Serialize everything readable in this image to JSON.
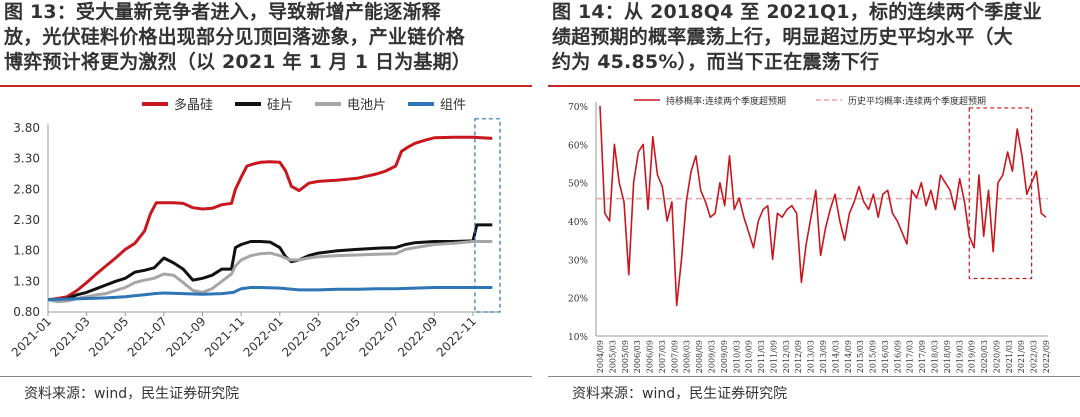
{
  "left": {
    "title": "图 13：受大量新竞争者进入，导致新增产能逐渐释放，光伏硅料价格出现部分见顶回落迹象，产业链价格博弈预计将更为激烈（以 2021 年 1 月 1 日为基期）",
    "title_lines": [
      "图 13：受大量新竞争者进入，导致新增产能逐渐释",
      "放，光伏硅料价格出现部分见顶回落迹象，产业链价格",
      "博弈预计将更为激烈（以 2021 年 1 月 1 日为基期）"
    ],
    "source": "资料来源：wind，民生证券研究院"
  },
  "right": {
    "title_lines": [
      "图 14：从 2018Q4 至 2021Q1，标的连续两个季度业",
      "绩超预期的概率震荡上行，明显超过历史平均水平（大",
      "约为 45.85%），而当下正在震荡下行"
    ],
    "source": "资料来源：wind，民生证券研究院"
  },
  "colors": {
    "accent": "#c62828",
    "poly": "#c8171e",
    "wafer": "#111111",
    "cell": "#a6a6a6",
    "module": "#2e75b6",
    "box": "#2e75b6"
  },
  "chart_data": [
    {
      "type": "line",
      "x_ticks": [
        "2021-01",
        "2021-03",
        "2021-05",
        "2021-07",
        "2021-09",
        "2021-11",
        "2022-01",
        "2022-03",
        "2022-05",
        "2022-07",
        "2022-09",
        "2022-11"
      ],
      "y_ticks": [
        "0.80",
        "1.30",
        "1.80",
        "2.30",
        "2.80",
        "3.30",
        "3.80"
      ],
      "ylim": [
        0.8,
        3.8
      ],
      "xlim": [
        0,
        23.4
      ],
      "legend_position": "top",
      "series": [
        {
          "name": "多晶硅",
          "color": "#c8171e",
          "points": [
            [
              0,
              1.0
            ],
            [
              0.5,
              1.02
            ],
            [
              1,
              1.05
            ],
            [
              1.5,
              1.15
            ],
            [
              2,
              1.28
            ],
            [
              2.5,
              1.42
            ],
            [
              3,
              1.55
            ],
            [
              3.5,
              1.68
            ],
            [
              4,
              1.82
            ],
            [
              4.5,
              1.92
            ],
            [
              5,
              2.12
            ],
            [
              5.3,
              2.4
            ],
            [
              5.6,
              2.58
            ],
            [
              6,
              2.58
            ],
            [
              6.5,
              2.58
            ],
            [
              7,
              2.57
            ],
            [
              7.5,
              2.5
            ],
            [
              8,
              2.48
            ],
            [
              8.5,
              2.49
            ],
            [
              9,
              2.55
            ],
            [
              9.5,
              2.57
            ],
            [
              9.7,
              2.8
            ],
            [
              10,
              3.0
            ],
            [
              10.3,
              3.18
            ],
            [
              10.7,
              3.22
            ],
            [
              11,
              3.24
            ],
            [
              11.5,
              3.25
            ],
            [
              12,
              3.24
            ],
            [
              12.3,
              3.1
            ],
            [
              12.6,
              2.85
            ],
            [
              13,
              2.78
            ],
            [
              13.5,
              2.9
            ],
            [
              14,
              2.93
            ],
            [
              15,
              2.95
            ],
            [
              16,
              2.98
            ],
            [
              17,
              3.05
            ],
            [
              17.5,
              3.1
            ],
            [
              18,
              3.18
            ],
            [
              18.3,
              3.42
            ],
            [
              18.7,
              3.5
            ],
            [
              19,
              3.55
            ],
            [
              19.5,
              3.6
            ],
            [
              20,
              3.64
            ],
            [
              21,
              3.65
            ],
            [
              22,
              3.65
            ],
            [
              23,
              3.63
            ]
          ]
        },
        {
          "name": "硅片",
          "color": "#111111",
          "points": [
            [
              0,
              1.0
            ],
            [
              0.5,
              1.0
            ],
            [
              1,
              1.02
            ],
            [
              1.5,
              1.08
            ],
            [
              2,
              1.12
            ],
            [
              2.5,
              1.18
            ],
            [
              3,
              1.24
            ],
            [
              3.5,
              1.3
            ],
            [
              4,
              1.35
            ],
            [
              4.5,
              1.45
            ],
            [
              5,
              1.48
            ],
            [
              5.5,
              1.52
            ],
            [
              6,
              1.68
            ],
            [
              6.5,
              1.6
            ],
            [
              7,
              1.5
            ],
            [
              7.5,
              1.32
            ],
            [
              8,
              1.35
            ],
            [
              8.5,
              1.4
            ],
            [
              9,
              1.5
            ],
            [
              9.5,
              1.5
            ],
            [
              9.7,
              1.85
            ],
            [
              10,
              1.9
            ],
            [
              10.5,
              1.95
            ],
            [
              11,
              1.95
            ],
            [
              11.5,
              1.94
            ],
            [
              12,
              1.85
            ],
            [
              12.3,
              1.7
            ],
            [
              12.6,
              1.62
            ],
            [
              13,
              1.65
            ],
            [
              13.5,
              1.72
            ],
            [
              14,
              1.76
            ],
            [
              15,
              1.8
            ],
            [
              16,
              1.82
            ],
            [
              17,
              1.84
            ],
            [
              18,
              1.85
            ],
            [
              18.5,
              1.9
            ],
            [
              19,
              1.93
            ],
            [
              20,
              1.95
            ],
            [
              21,
              1.95
            ],
            [
              22,
              1.96
            ],
            [
              22.2,
              2.22
            ],
            [
              23,
              2.22
            ]
          ]
        },
        {
          "name": "电池片",
          "color": "#a6a6a6",
          "points": [
            [
              0,
              1.0
            ],
            [
              0.5,
              0.97
            ],
            [
              1,
              0.98
            ],
            [
              1.5,
              1.02
            ],
            [
              2,
              1.05
            ],
            [
              2.5,
              1.08
            ],
            [
              3,
              1.1
            ],
            [
              3.5,
              1.15
            ],
            [
              4,
              1.2
            ],
            [
              4.5,
              1.28
            ],
            [
              5,
              1.32
            ],
            [
              5.5,
              1.35
            ],
            [
              6,
              1.42
            ],
            [
              6.5,
              1.4
            ],
            [
              7,
              1.28
            ],
            [
              7.5,
              1.15
            ],
            [
              8,
              1.12
            ],
            [
              8.5,
              1.18
            ],
            [
              9,
              1.3
            ],
            [
              9.5,
              1.42
            ],
            [
              9.7,
              1.55
            ],
            [
              10,
              1.65
            ],
            [
              10.5,
              1.72
            ],
            [
              11,
              1.75
            ],
            [
              11.5,
              1.76
            ],
            [
              12,
              1.72
            ],
            [
              12.5,
              1.65
            ],
            [
              13,
              1.65
            ],
            [
              13.5,
              1.68
            ],
            [
              14,
              1.7
            ],
            [
              15,
              1.72
            ],
            [
              16,
              1.73
            ],
            [
              17,
              1.74
            ],
            [
              18,
              1.75
            ],
            [
              18.5,
              1.82
            ],
            [
              19,
              1.85
            ],
            [
              20,
              1.9
            ],
            [
              21,
              1.92
            ],
            [
              22,
              1.95
            ],
            [
              23,
              1.95
            ]
          ]
        },
        {
          "name": "组件",
          "color": "#2e75b6",
          "points": [
            [
              0,
              1.0
            ],
            [
              1,
              1.01
            ],
            [
              2,
              1.02
            ],
            [
              3,
              1.03
            ],
            [
              4,
              1.05
            ],
            [
              5,
              1.08
            ],
            [
              5.5,
              1.1
            ],
            [
              6,
              1.11
            ],
            [
              7,
              1.1
            ],
            [
              8,
              1.09
            ],
            [
              9,
              1.1
            ],
            [
              9.6,
              1.12
            ],
            [
              10,
              1.18
            ],
            [
              10.5,
              1.2
            ],
            [
              11,
              1.2
            ],
            [
              12,
              1.19
            ],
            [
              13,
              1.16
            ],
            [
              14,
              1.16
            ],
            [
              15,
              1.17
            ],
            [
              16,
              1.17
            ],
            [
              17,
              1.18
            ],
            [
              18,
              1.18
            ],
            [
              19,
              1.19
            ],
            [
              20,
              1.2
            ],
            [
              21,
              1.2
            ],
            [
              22,
              1.2
            ],
            [
              23,
              1.2
            ]
          ]
        }
      ],
      "highlight_box": {
        "x0": 22.1,
        "x1": 23.4,
        "y0": 0.8,
        "y1": 3.95
      }
    },
    {
      "type": "line",
      "ylim": [
        0.1,
        0.7
      ],
      "y_ticks": [
        "10%",
        "20%",
        "30%",
        "40%",
        "50%",
        "60%",
        "70%"
      ],
      "x_labels": [
        "2004/09",
        "2005/03",
        "2005/09",
        "2006/03",
        "2006/09",
        "2007/03",
        "2007/09",
        "2008/03",
        "2008/09",
        "2009/03",
        "2009/09",
        "2010/03",
        "2010/09",
        "2011/03",
        "2011/09",
        "2012/03",
        "2012/09",
        "2013/03",
        "2013/09",
        "2014/03",
        "2014/09",
        "2015/03",
        "2015/09",
        "2016/03",
        "2016/09",
        "2017/03",
        "2017/09",
        "2018/03",
        "2018/09",
        "2019/03",
        "2019/09",
        "2020/03",
        "2020/09",
        "2021/03",
        "2021/09",
        "2022/03",
        "2022/09"
      ],
      "legend_position": "top",
      "series": [
        {
          "name": "持移概率:连续两个季度超预期",
          "color": "#c8171e",
          "values": [
            0.7,
            0.42,
            0.4,
            0.6,
            0.5,
            0.45,
            0.26,
            0.5,
            0.58,
            0.6,
            0.43,
            0.62,
            0.52,
            0.49,
            0.4,
            0.45,
            0.18,
            0.3,
            0.45,
            0.53,
            0.57,
            0.48,
            0.45,
            0.41,
            0.42,
            0.5,
            0.44,
            0.57,
            0.43,
            0.46,
            0.41,
            0.37,
            0.33,
            0.4,
            0.43,
            0.44,
            0.3,
            0.42,
            0.41,
            0.43,
            0.44,
            0.42,
            0.24,
            0.34,
            0.41,
            0.48,
            0.31,
            0.38,
            0.43,
            0.47,
            0.4,
            0.35,
            0.42,
            0.45,
            0.49,
            0.45,
            0.43,
            0.47,
            0.41,
            0.47,
            0.48,
            0.42,
            0.4,
            0.37,
            0.34,
            0.48,
            0.46,
            0.5,
            0.44,
            0.48,
            0.43,
            0.52,
            0.5,
            0.48,
            0.43,
            0.51,
            0.45,
            0.36,
            0.33,
            0.52,
            0.36,
            0.48,
            0.32,
            0.5,
            0.52,
            0.58,
            0.53,
            0.64,
            0.57,
            0.47,
            0.5,
            0.53,
            0.42,
            0.41
          ]
        },
        {
          "name": "历史平均概率:连续两个季度超预期",
          "color": "#e8a3a6",
          "value": 0.4585
        }
      ],
      "highlight_box": {
        "i0": 77,
        "i1": 90,
        "y0": 0.25,
        "y1": 0.695
      }
    }
  ]
}
